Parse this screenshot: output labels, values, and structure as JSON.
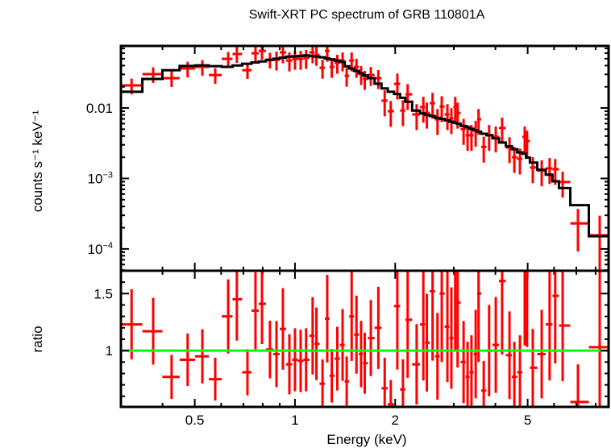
{
  "chart_data": {
    "type": "scatter",
    "title": "Swift-XRT PC spectrum of GRB 110801A",
    "xlabel": "Energy (keV)",
    "x_scale": "log",
    "xlim": [
      0.3,
      8.75
    ],
    "x_ticks": [
      {
        "value": 0.5,
        "label": "0.5"
      },
      {
        "value": 1,
        "label": "1"
      },
      {
        "value": 2,
        "label": "2"
      },
      {
        "value": 5,
        "label": "5"
      }
    ],
    "colors": {
      "data": "#ff0000",
      "model": "#000000",
      "unity_line": "#00ff00",
      "axes": "#000000"
    },
    "grid": false,
    "top_panel": {
      "ylabel": "counts s⁻¹ keV⁻¹",
      "y_scale": "log",
      "ylim": [
        4.9e-05,
        0.076
      ],
      "y_ticks": [
        {
          "value": 0.01,
          "label": "0.01",
          "base": "",
          "exp": ""
        },
        {
          "value": 0.001,
          "label": "",
          "base": "10",
          "exp": "−3"
        },
        {
          "value": 0.0001,
          "label": "",
          "base": "10",
          "exp": "−4"
        }
      ]
    },
    "bottom_panel": {
      "ylabel": "ratio",
      "y_scale": "linear",
      "ylim": [
        0.507,
        1.7
      ],
      "y_ticks": [
        {
          "value": 1,
          "label": "1"
        },
        {
          "value": 1.5,
          "label": "1.5"
        }
      ],
      "reference_line": 1
    },
    "series": {
      "energy_keV": [
        0.323,
        0.375,
        0.426,
        0.476,
        0.527,
        0.576,
        0.63,
        0.669,
        0.72,
        0.761,
        0.796,
        0.841,
        0.88,
        0.92,
        0.962,
        1.0,
        1.04,
        1.08,
        1.13,
        1.16,
        1.21,
        1.25,
        1.29,
        1.34,
        1.39,
        1.43,
        1.48,
        1.53,
        1.58,
        1.62,
        1.69,
        1.78,
        1.86,
        1.94,
        2.03,
        2.11,
        2.18,
        2.32,
        2.43,
        2.49,
        2.59,
        2.68,
        2.76,
        2.87,
        2.95,
        3.03,
        3.08,
        3.21,
        3.3,
        3.39,
        3.49,
        3.56,
        3.69,
        3.83,
        4.01,
        4.19,
        4.41,
        4.56,
        4.74,
        4.9,
        4.98,
        5.18,
        5.51,
        5.82,
        6.05,
        6.37,
        7.08,
        8.23
      ],
      "counts": [
        0.0209,
        0.0302,
        0.0265,
        0.0363,
        0.0383,
        0.0294,
        0.0498,
        0.0583,
        0.0344,
        0.0598,
        0.0647,
        0.0485,
        0.0485,
        0.0615,
        0.0472,
        0.0498,
        0.0498,
        0.0512,
        0.0615,
        0.0567,
        0.0372,
        0.0647,
        0.0383,
        0.0437,
        0.0472,
        0.0286,
        0.0472,
        0.0383,
        0.0302,
        0.0258,
        0.0294,
        0.0265,
        0.0127,
        0.009,
        0.022,
        0.0092,
        0.0156,
        0.0081,
        0.0103,
        0.0085,
        0.0117,
        0.0069,
        0.0105,
        0.0081,
        0.0071,
        0.0103,
        0.0085,
        0.005,
        0.0041,
        0.0041,
        0.0047,
        0.0069,
        0.0028,
        0.0041,
        0.0039,
        0.0052,
        0.00275,
        0.002,
        0.0019,
        0.0039,
        0.0034,
        0.00143,
        0.00129,
        0.00139,
        0.00135,
        0.00089,
        0.00023,
        0.000156
      ],
      "ratio": [
        1.23,
        1.17,
        0.77,
        0.92,
        0.95,
        0.75,
        1.3,
        1.45,
        0.81,
        1.35,
        1.41,
        1.01,
        0.97,
        1.19,
        0.88,
        0.92,
        0.91,
        0.92,
        1.13,
        1.06,
        0.71,
        1.28,
        0.78,
        0.93,
        1.05,
        0.73,
        1.3,
        1.14,
        0.97,
        0.89,
        1.11,
        1.2,
        0.67,
        0.53,
        1.39,
        0.66,
        1.27,
        0.88,
        1.23,
        1.07,
        1.52,
        0.95,
        1.5,
        1.21,
        1.11,
        1.67,
        1.42,
        0.9,
        0.77,
        0.81,
        0.97,
        1.5,
        0.65,
        1.0,
        1.05,
        1.61,
        0.96,
        0.77,
        0.81,
        1.74,
        1.72,
        0.85,
        0.97,
        1.23,
        1.48,
        1.22,
        0.55,
        1.03
      ],
      "yerr_frac": [
        0.25,
        0.25,
        0.25,
        0.25,
        0.25,
        0.25,
        0.25,
        0.25,
        0.25,
        0.25,
        0.25,
        0.25,
        0.3,
        0.3,
        0.3,
        0.3,
        0.3,
        0.3,
        0.3,
        0.3,
        0.3,
        0.3,
        0.3,
        0.3,
        0.3,
        0.3,
        0.3,
        0.3,
        0.3,
        0.3,
        0.3,
        0.3,
        0.4,
        0.4,
        0.4,
        0.4,
        0.4,
        0.4,
        0.4,
        0.4,
        0.4,
        0.4,
        0.4,
        0.4,
        0.4,
        0.4,
        0.4,
        0.4,
        0.4,
        0.4,
        0.4,
        0.4,
        0.4,
        0.4,
        0.4,
        0.4,
        0.4,
        0.4,
        0.4,
        0.4,
        0.4,
        0.4,
        0.4,
        0.4,
        0.4,
        0.4,
        0.6,
        0.9
      ]
    }
  }
}
